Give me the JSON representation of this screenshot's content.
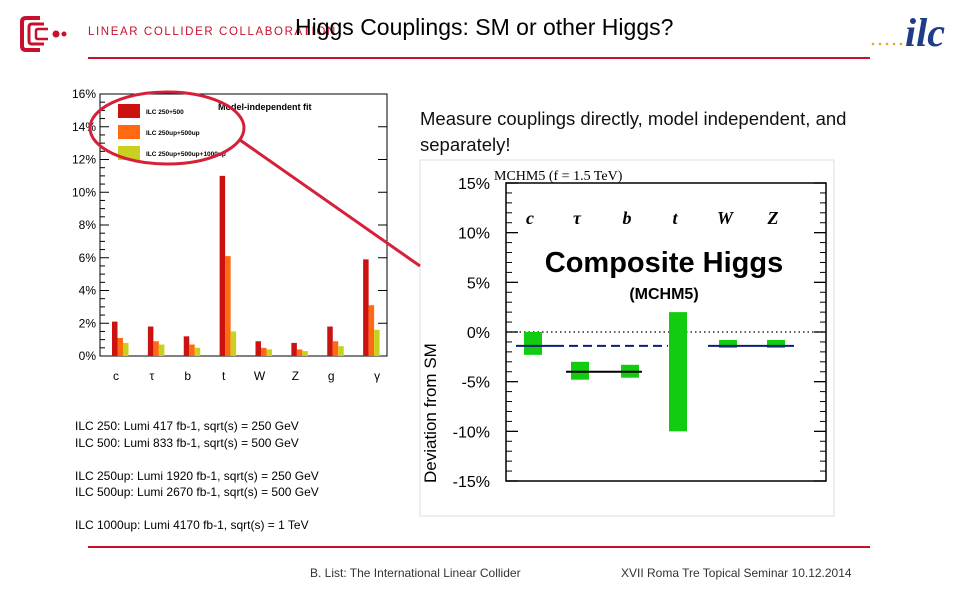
{
  "header": {
    "org_name": "LINEAR COLLIDER COLLABORATION",
    "title": "Higgs Couplings: SM or other Higgs?",
    "ilc_logo_text": "ilc",
    "brand_red": "#c8102e",
    "brand_blue": "#1f3c88"
  },
  "notes": [
    "ILC 250: Lumi 417 fb-1, sqrt(s) = 250 GeV",
    "ILC 500: Lumi 833 fb-1, sqrt(s) = 500 GeV",
    "",
    "ILC 250up: Lumi 1920 fb-1, sqrt(s) = 250 GeV",
    "ILC 500up: Lumi 2670 fb-1, sqrt(s) = 500 GeV",
    "",
    "ILC 1000up: Lumi 4170 fb-1, sqrt(s) = 1 TeV"
  ],
  "measure_text": "Measure couplings directly, model independent, and separately!",
  "footer": {
    "left": "B. List: The International Linear Collider",
    "right": "XVII Roma Tre Topical Seminar 10.12.2014"
  },
  "chart_data": [
    {
      "type": "bar",
      "title": "Model-independent fit",
      "categories": [
        "c",
        "τ",
        "b",
        "t",
        "W",
        "Z",
        "g",
        "γ"
      ],
      "ylim": [
        0,
        16
      ],
      "yticks": [
        "0%",
        "2%",
        "4%",
        "6%",
        "8%",
        "10%",
        "12%",
        "14%",
        "16%"
      ],
      "legend_position": "top-left",
      "series": [
        {
          "name": "ILC 250+500",
          "color": "#cc1111",
          "values": [
            2.1,
            1.8,
            1.2,
            11.0,
            0.9,
            0.8,
            1.8,
            5.9
          ]
        },
        {
          "name": "ILC 250up+500up",
          "color": "#ff6a10",
          "values": [
            1.1,
            0.9,
            0.7,
            6.1,
            0.5,
            0.4,
            0.9,
            3.1
          ]
        },
        {
          "name": "ILC 250up+500up+1000up",
          "color": "#c8d21e",
          "values": [
            0.8,
            0.7,
            0.5,
            1.5,
            0.4,
            0.3,
            0.6,
            1.6
          ]
        }
      ]
    },
    {
      "type": "bar",
      "title": "MCHM5 (f = 1.5 TeV)",
      "heading": "Composite Higgs",
      "subheading": "(MCHM5)",
      "ylabel": "Deviation from SM",
      "categories": [
        "c",
        "τ",
        "b",
        "t",
        "W",
        "Z"
      ],
      "ylim": [
        -15,
        15
      ],
      "yticks": [
        "15%",
        "10%",
        "5%",
        "0%",
        "-5%",
        "-10%",
        "-15%"
      ],
      "bar_color": "#11cc11",
      "line_color": "#0b1e7a",
      "bars": [
        {
          "category": "c",
          "low": -2.3,
          "high": 0.0
        },
        {
          "category": "τ",
          "low": -4.8,
          "high": -3.0
        },
        {
          "category": "b",
          "low": -4.6,
          "high": -3.3
        },
        {
          "category": "t",
          "low": -10.0,
          "high": 2.0
        },
        {
          "category": "W",
          "low": -1.6,
          "high": -0.8
        },
        {
          "category": "Z",
          "low": -1.6,
          "high": -0.8
        }
      ],
      "prediction": [
        -1.4,
        -4.0,
        -4.0,
        -1.4,
        -1.4,
        -1.4
      ]
    }
  ]
}
